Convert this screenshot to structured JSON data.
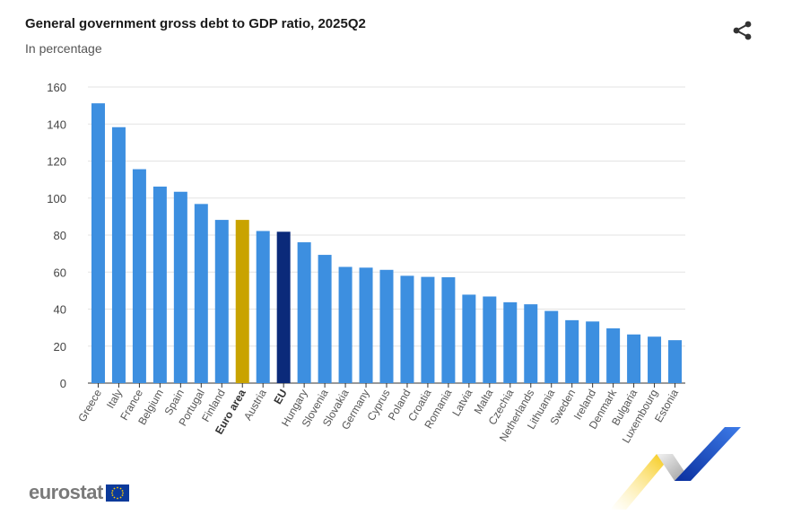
{
  "header": {
    "title": "General government gross debt to GDP ratio, 2025Q2",
    "subtitle": "In percentage"
  },
  "footer": {
    "logo_text": "eurostat"
  },
  "icons": {
    "share": "share-icon",
    "flag": "eu-flag-icon"
  },
  "colors": {
    "bar": "#3d8fe0",
    "euro_area": "#c9a300",
    "eu": "#0b2a7a"
  },
  "chart_data": {
    "type": "bar",
    "title": "General government gross debt to GDP ratio, 2025Q2",
    "subtitle": "In percentage",
    "categories": [
      "Greece",
      "Italy",
      "France",
      "Belgium",
      "Spain",
      "Portugal",
      "Finland",
      "Euro area",
      "Austria",
      "EU",
      "Hungary",
      "Slovenia",
      "Slovakia",
      "Germany",
      "Cyprus",
      "Poland",
      "Croatia",
      "Romania",
      "Latvia",
      "Malta",
      "Czechia",
      "Netherlands",
      "Lithuania",
      "Sweden",
      "Ireland",
      "Denmark",
      "Bulgaria",
      "Luxembourg",
      "Estonia"
    ],
    "values": [
      151.2,
      138.3,
      115.6,
      106.2,
      103.4,
      96.8,
      88.2,
      88.2,
      82.2,
      81.8,
      76.1,
      69.3,
      62.8,
      62.4,
      61.2,
      58.0,
      57.4,
      57.2,
      47.8,
      46.8,
      43.7,
      42.6,
      39.0,
      34.0,
      33.3,
      29.6,
      26.3,
      25.1,
      23.2
    ],
    "highlight": {
      "Euro area": "euro_area",
      "EU": "eu"
    },
    "bold_categories": [
      "Euro area",
      "EU"
    ],
    "ylim": [
      0,
      160
    ],
    "yticks": [
      0,
      20,
      40,
      60,
      80,
      100,
      120,
      140,
      160
    ],
    "xlabel": "",
    "ylabel": "",
    "grid": true,
    "legend": "none"
  }
}
